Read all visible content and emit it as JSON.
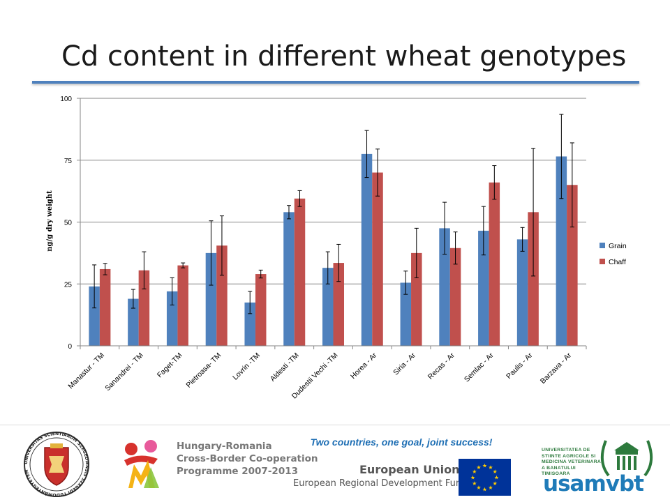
{
  "slide": {
    "title": "Cd content in different wheat genotypes"
  },
  "footer": {
    "slogan": "Two countries, one goal, joint success!",
    "hungary_romania_lines": [
      "Hungary-Romania",
      "Cross-Border Co-operation",
      "Programme 2007-2013"
    ],
    "eu_title": "European Union",
    "eu_fund": "European Regional Development Fund",
    "usamvbt_lines": [
      "UNIVERSITATEA DE",
      "STIINTE AGRICOLE SI",
      "MEDICINA VETERINARA",
      "A BANATULUI TIMISOARA"
    ],
    "usamvbt_word": "usamvbt",
    "seal_ring_text": "UNIVERSITAS SCIENTIARUM SZEGEDIENSIS SZEGEDI TUDOMÁNYEGYETEM"
  },
  "colors": {
    "grain": "#4f81bd",
    "chaff": "#c0504d",
    "title_rule": "#4f81bd",
    "slogan": "#1f6fb4",
    "eu_blue": "#003399",
    "eu_star": "#ffcc00",
    "usamv_green": "#2d7a3d",
    "usamv_blue": "#1f7bb8"
  },
  "chart_data": {
    "type": "bar",
    "title": "",
    "xlabel": "",
    "ylabel": "ng/g dry weight",
    "ylim": [
      0,
      100
    ],
    "yticks": [
      0,
      25,
      50,
      75,
      100
    ],
    "grid": true,
    "legend_position": "right",
    "categories": [
      "Manastur - TM",
      "Sanandrei - TM",
      "Faget-TM",
      "Pietroasa- TM",
      "Lovrin -TM",
      "Aldesti -TM",
      "Dudestii Vechi -TM",
      "Horea - Ar",
      "Siria - Ar",
      "Recas - Ar",
      "Semlac - Ar",
      "Paulis - Ar",
      "Barzava - Ar"
    ],
    "series": [
      {
        "name": "Grain",
        "values": [
          24,
          19,
          22,
          37.5,
          17.5,
          54,
          31.5,
          77.5,
          25.5,
          47.5,
          46.5,
          43,
          76.5
        ],
        "error": [
          8.7,
          3.8,
          5.5,
          13,
          4.5,
          2.7,
          6.5,
          9.5,
          4.7,
          10.5,
          9.8,
          4.8,
          17
        ]
      },
      {
        "name": "Chaff",
        "values": [
          31,
          30.5,
          32.5,
          40.5,
          29,
          59.5,
          33.5,
          70,
          37.5,
          39.5,
          66,
          54,
          65
        ],
        "error": [
          2.3,
          7.5,
          1,
          12,
          1.6,
          3.2,
          7.5,
          9.5,
          10,
          6.5,
          6.8,
          25.8,
          17
        ]
      }
    ]
  }
}
